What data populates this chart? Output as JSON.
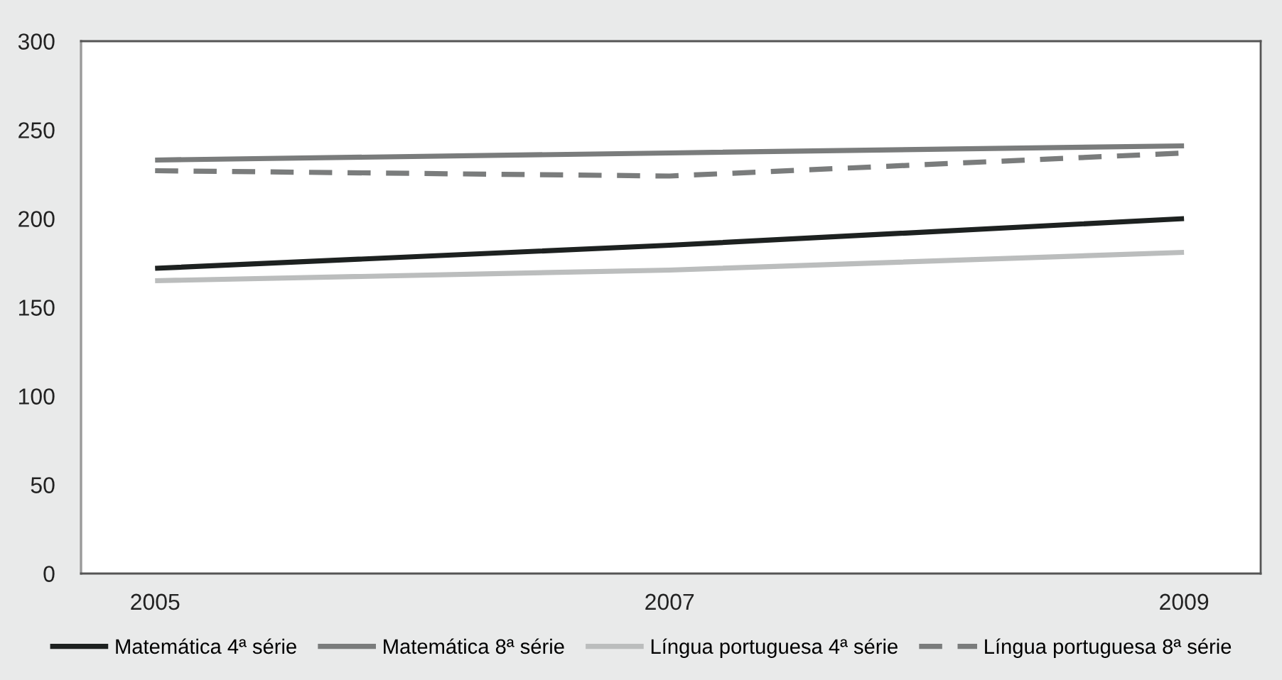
{
  "chart_data": {
    "type": "line",
    "categories": [
      "2005",
      "2007",
      "2009"
    ],
    "series": [
      {
        "name": "Matemática 4ª série",
        "color": "#1d2120",
        "values": [
          172,
          185,
          200
        ]
      },
      {
        "name": "Matemática 8ª série",
        "color": "#7a7c7c",
        "values": [
          233,
          237,
          241
        ]
      },
      {
        "name": "Língua portuguesa 4ª série",
        "color": "#bbbdbd",
        "values": [
          165,
          171,
          181
        ]
      },
      {
        "name": "Língua portuguesa 8ª série",
        "color": "#7a7c7c",
        "values": [
          227,
          224,
          237
        ],
        "line_style": "dashed"
      }
    ],
    "ylim": [
      0,
      300
    ],
    "yticks": [
      0,
      50,
      100,
      150,
      200,
      250,
      300
    ],
    "legend": "bottom",
    "grid": false
  }
}
